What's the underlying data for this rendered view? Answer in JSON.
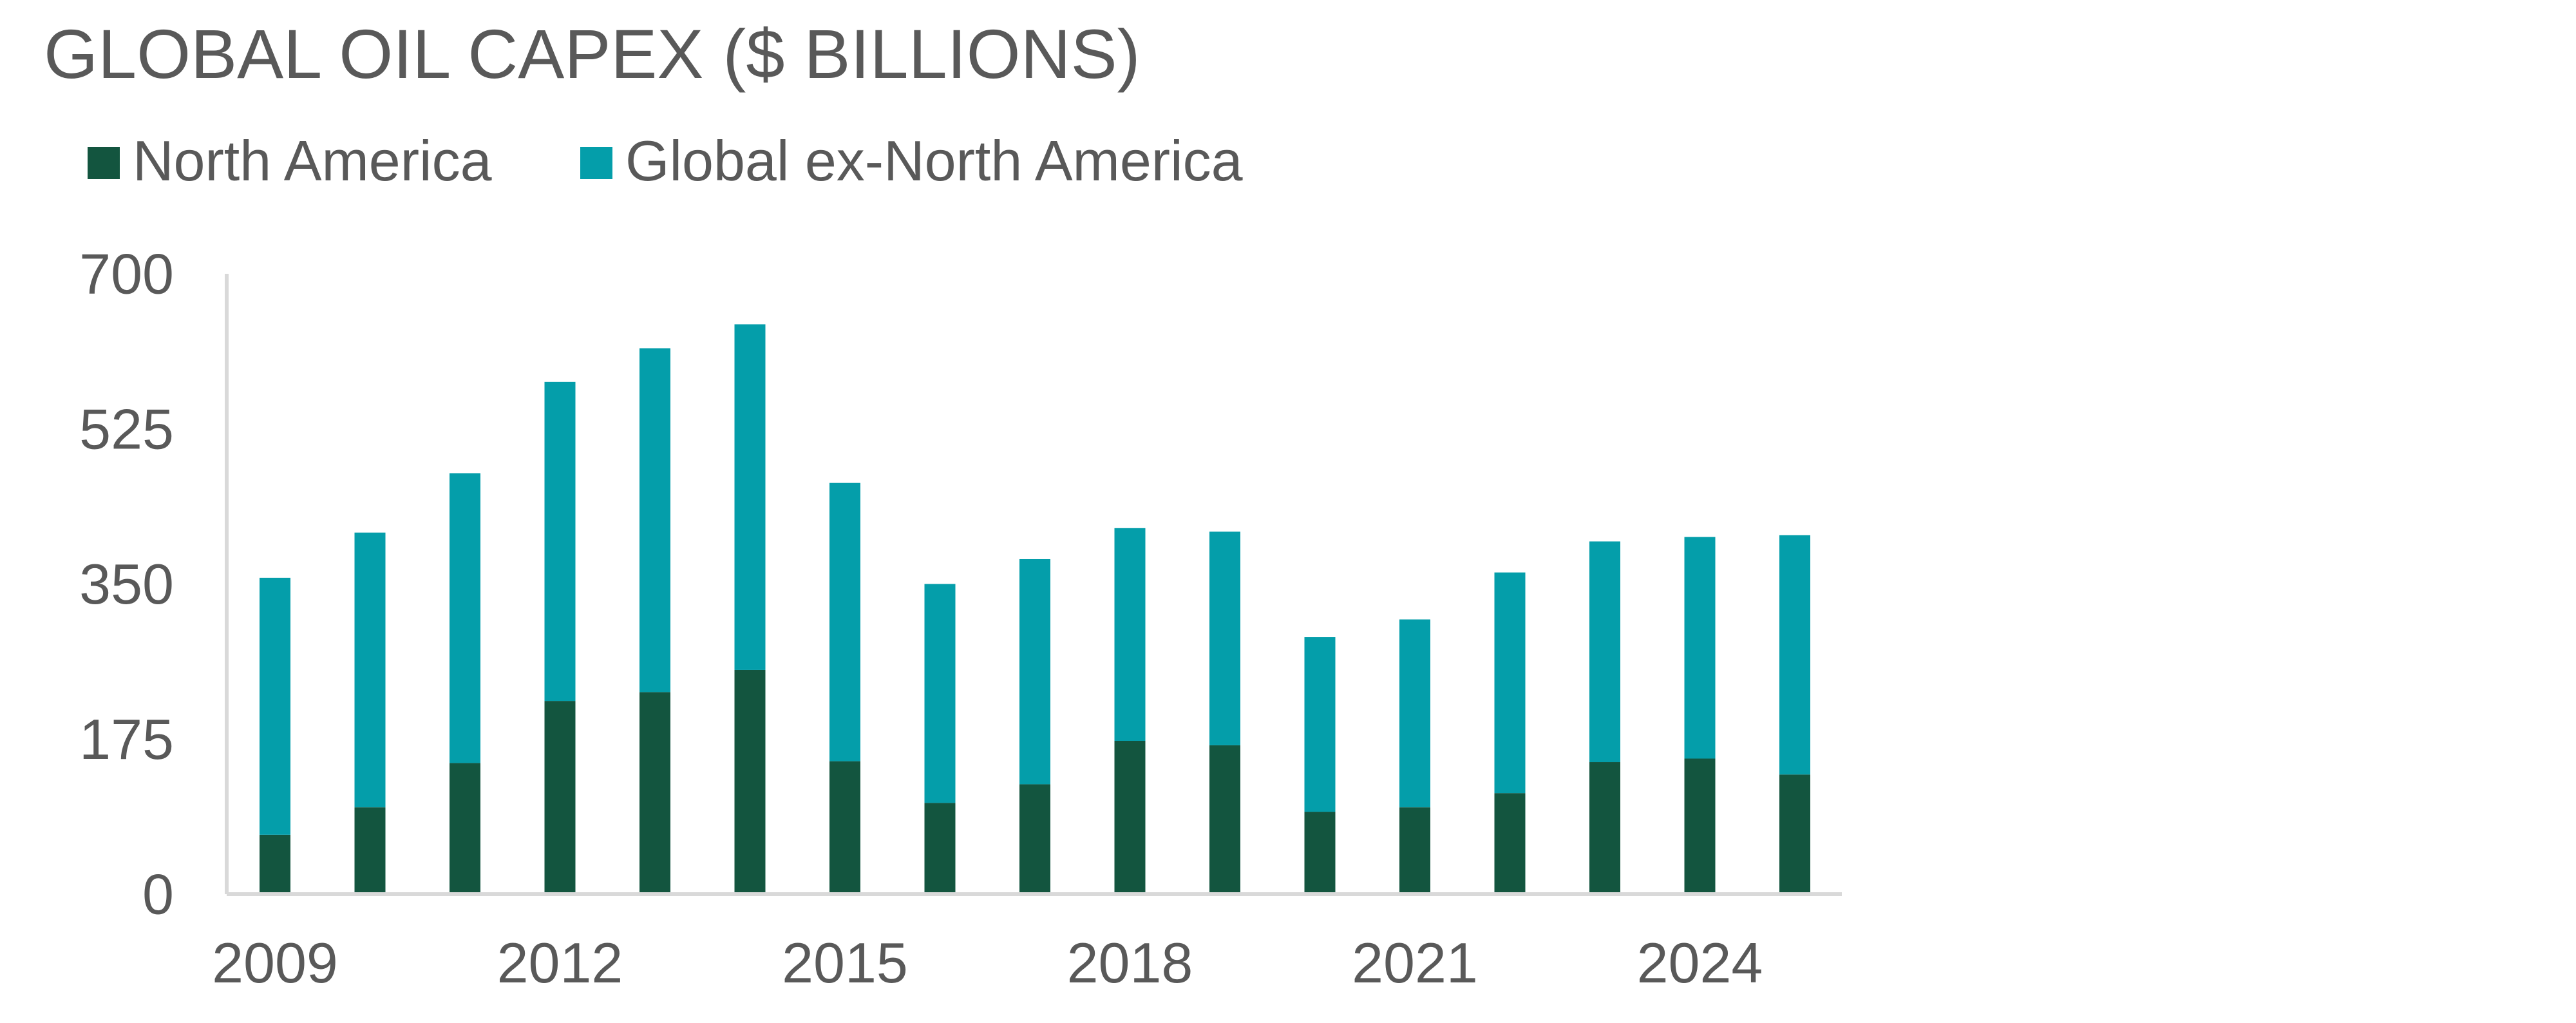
{
  "chart_data": {
    "type": "bar",
    "stacked": true,
    "title": "GLOBAL OIL CAPEX ($ BILLIONS)",
    "xlabel": "",
    "ylabel": "",
    "categories": [
      "2009",
      "2010",
      "2011",
      "2012",
      "2013",
      "2014",
      "2015",
      "2016",
      "2017",
      "2018",
      "2019",
      "2020",
      "2021",
      "2022",
      "2023",
      "2024",
      "2025"
    ],
    "x_tick_labels": [
      "2009",
      "2012",
      "2015",
      "2018",
      "2021",
      "2024"
    ],
    "y_ticks": [
      0,
      175,
      350,
      525,
      700
    ],
    "ylim": [
      0,
      700
    ],
    "grid": false,
    "legend_position": "top-left",
    "series": [
      {
        "name": "North America",
        "color": "#13553F",
        "values": [
          67,
          98,
          148,
          218,
          228,
          253,
          150,
          103,
          124,
          173,
          168,
          93,
          98,
          114,
          149,
          153,
          135
        ]
      },
      {
        "name": "Global ex-North America",
        "color": "#049EAA",
        "values": [
          290,
          310,
          327,
          360,
          388,
          390,
          314,
          247,
          254,
          240,
          241,
          197,
          212,
          249,
          249,
          250,
          270
        ]
      }
    ]
  }
}
